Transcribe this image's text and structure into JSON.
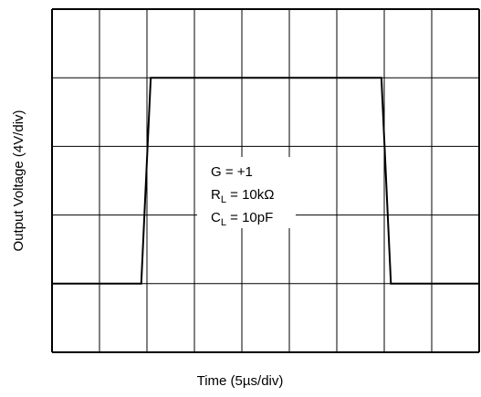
{
  "chart_data": {
    "type": "line",
    "x_label": "Time (5µs/div)",
    "y_label": "Output Voltage (4V/div)",
    "x": [
      0,
      9.4,
      10.4,
      34.7,
      35.7,
      45
    ],
    "series": [
      {
        "name": "Output",
        "color": "#000000",
        "values": [
          -6,
          -6,
          6,
          6,
          -6,
          -6
        ]
      }
    ],
    "xlim": [
      0,
      45
    ],
    "xticks": [
      0,
      5,
      10,
      15,
      20,
      25,
      30,
      35,
      40,
      45
    ],
    "ylim": [
      -10,
      10
    ],
    "yticks": [
      -10,
      -6,
      -2,
      2,
      6,
      10
    ],
    "grid": true,
    "annotation": [
      {
        "text": "G = +1"
      },
      {
        "text": "R",
        "sub": "L",
        "rest": " = 10kΩ"
      },
      {
        "text": "C",
        "sub": "L",
        "rest": " = 10pF"
      }
    ]
  }
}
